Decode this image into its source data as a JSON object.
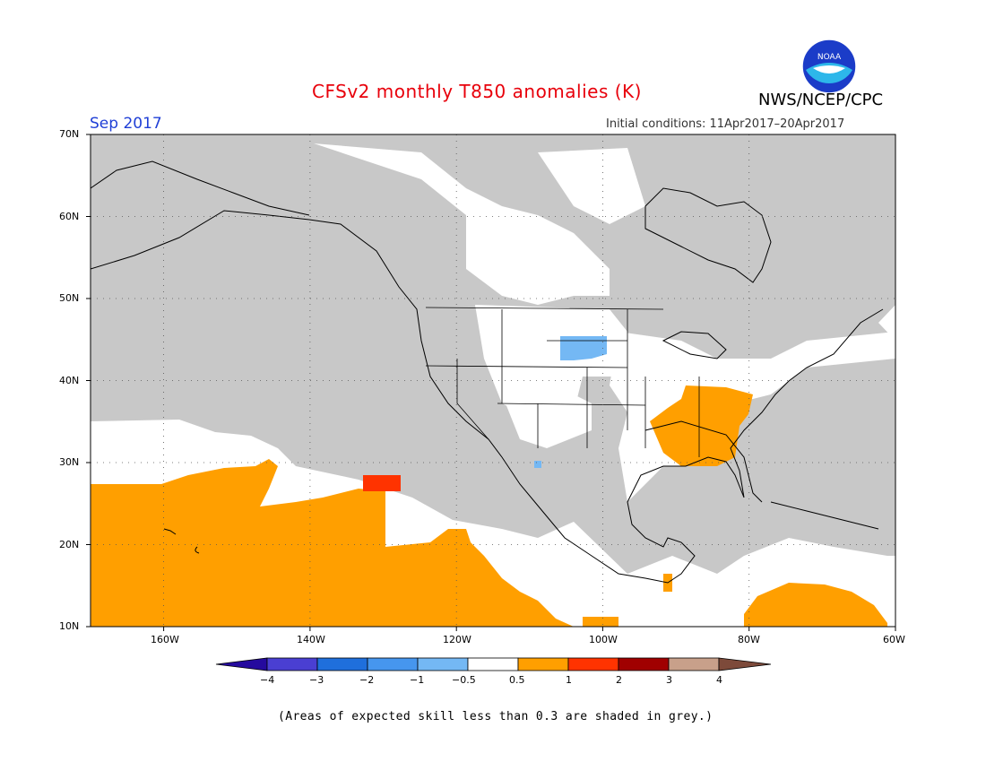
{
  "title": "CFSv2 monthly T850 anomalies (K)",
  "organization": "NWS/NCEP/CPC",
  "logo": {
    "label": "NOAA",
    "icon": "noaa-logo-icon"
  },
  "month_label": "Sep 2017",
  "initial_conditions": "Initial conditions: 11Apr2017–20Apr2017",
  "map": {
    "projection": "lat-lon",
    "lon_range": [
      -170,
      -60
    ],
    "lat_range": [
      10,
      70
    ],
    "lat_ticks": [
      "70N",
      "60N",
      "50N",
      "40N",
      "30N",
      "20N",
      "10N"
    ],
    "lon_ticks": [
      "160W",
      "140W",
      "120W",
      "100W",
      "80W",
      "60W"
    ],
    "grid": true,
    "grey_meaning": "expected skill less than 0.3",
    "regions": [
      {
        "name": "Southeastern US",
        "category": "0.5 to 1",
        "color": "#ff9f00"
      },
      {
        "name": "Subtropical eastern Pacific near Hawaii",
        "category": "0.5 to 1",
        "color": "#ff9f00"
      },
      {
        "name": "Eastern Pacific off Mexico",
        "category": "0.5 to 1",
        "color": "#ff9f00"
      },
      {
        "name": "Central Pacific near 28N 130W",
        "category": "1 to 2",
        "color": "#ff3300"
      },
      {
        "name": "Caribbean / northern South America",
        "category": "0.5 to 1",
        "color": "#ff9f00"
      },
      {
        "name": "Northern Plains (Dakotas)",
        "category": "-1 to -0.5",
        "color": "#74b8f4"
      }
    ]
  },
  "colorbar": {
    "ticks": [
      "−4",
      "−3",
      "−2",
      "−1",
      "−0.5",
      "0.5",
      "1",
      "2",
      "3",
      "4"
    ],
    "colors": [
      "#250a9e",
      "#4a3fd2",
      "#1f6fdc",
      "#4696ee",
      "#74b8f4",
      "#ffffff",
      "#ff9f00",
      "#ff3300",
      "#a00000",
      "#c8a08a",
      "#7d4a3a"
    ]
  },
  "footnote": "(Areas of expected skill less than 0.3 are shaded in grey.)"
}
